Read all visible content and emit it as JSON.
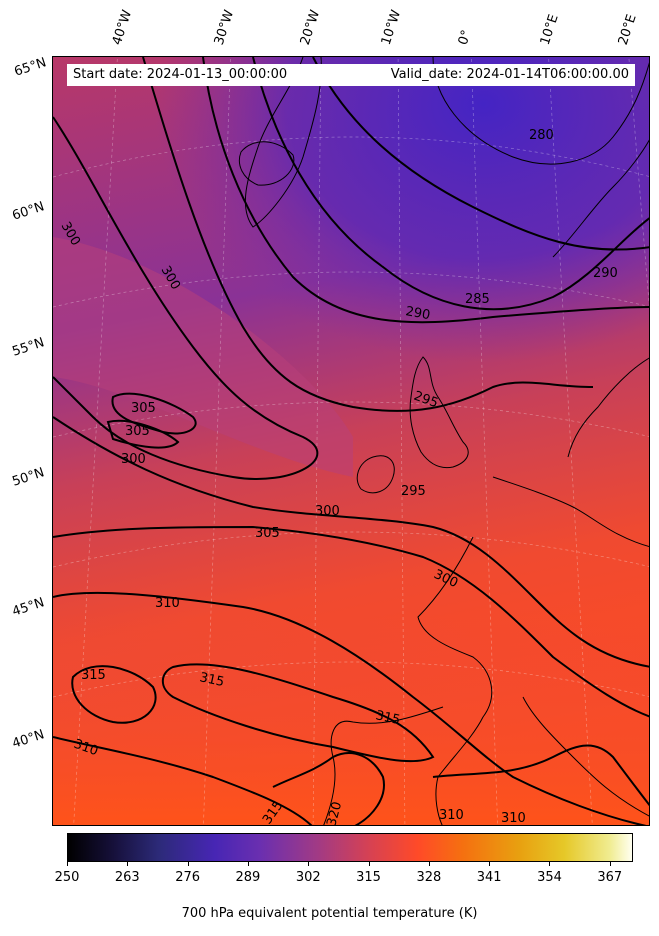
{
  "header": {
    "start_label": "Start date: 2024-01-13_00:00:00",
    "valid_label": "Valid_date: 2024-01-14T06:00:00.00"
  },
  "lon_labels": [
    "40°W",
    "30°W",
    "20°W",
    "10°W",
    "0°",
    "10°E",
    "20°E"
  ],
  "lat_labels": [
    "65°N",
    "60°N",
    "55°N",
    "50°N",
    "45°N",
    "40°N"
  ],
  "contour_labels": [
    "280",
    "285",
    "290",
    "290",
    "295",
    "295",
    "300",
    "300",
    "300",
    "300",
    "300",
    "305",
    "305",
    "305",
    "310",
    "310",
    "310",
    "310",
    "315",
    "315",
    "315",
    "315",
    "320"
  ],
  "colorbar": {
    "ticks": [
      "250",
      "263",
      "276",
      "289",
      "302",
      "315",
      "328",
      "341",
      "354",
      "367"
    ],
    "label": "700 hPa equivalent potential temperature (K)",
    "range": [
      250,
      372
    ]
  },
  "colors": {
    "cold": "#4a22b8",
    "mid": "#c8405c",
    "warm": "#ff4a22"
  }
}
